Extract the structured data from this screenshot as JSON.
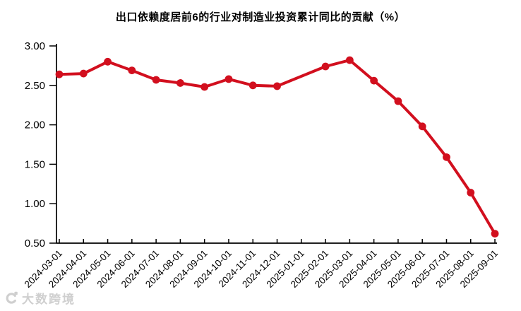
{
  "title": "出口依赖度居前6的行业对制造业投资累计同比的贡献（%）",
  "watermark": {
    "text": "大数跨境"
  },
  "colors": {
    "line": "#d20f1e",
    "axis": "#000000",
    "text": "#000000",
    "watermark": "#c7c7c7"
  },
  "chart_data": {
    "type": "line",
    "title": "出口依赖度居前6的行业对制造业投资累计同比的贡献（%）",
    "x": [
      "2024-03-01",
      "2024-04-01",
      "2024-05-01",
      "2024-06-01",
      "2024-07-01",
      "2024-08-01",
      "2024-09-01",
      "2024-10-01",
      "2024-11-01",
      "2024-12-01",
      "2025-01-01",
      "2025-02-01",
      "2025-03-01",
      "2025-04-01",
      "2025-05-01",
      "2025-06-01",
      "2025-07-01",
      "2025-08-01",
      "2025-09-01"
    ],
    "series": [
      {
        "name": "出口依赖度居前6的行业对制造业投资累计同比的贡献（%）",
        "values": [
          2.64,
          2.65,
          2.8,
          2.69,
          2.57,
          2.53,
          2.48,
          2.58,
          2.5,
          2.49,
          null,
          2.74,
          2.82,
          2.56,
          2.3,
          1.98,
          1.59,
          1.14,
          0.62
        ]
      }
    ],
    "ylim": [
      0.5,
      3.0
    ],
    "yticks": [
      3.0,
      2.5,
      2.0,
      1.5,
      1.0,
      0.5
    ],
    "ytick_labels": [
      "3.00",
      "2.50",
      "2.00",
      "1.50",
      "1.00",
      "0.50"
    ],
    "xlabel": "",
    "ylabel": "",
    "grid": false,
    "legend": "none",
    "marker": "circle",
    "x_label_rotation": 45
  }
}
